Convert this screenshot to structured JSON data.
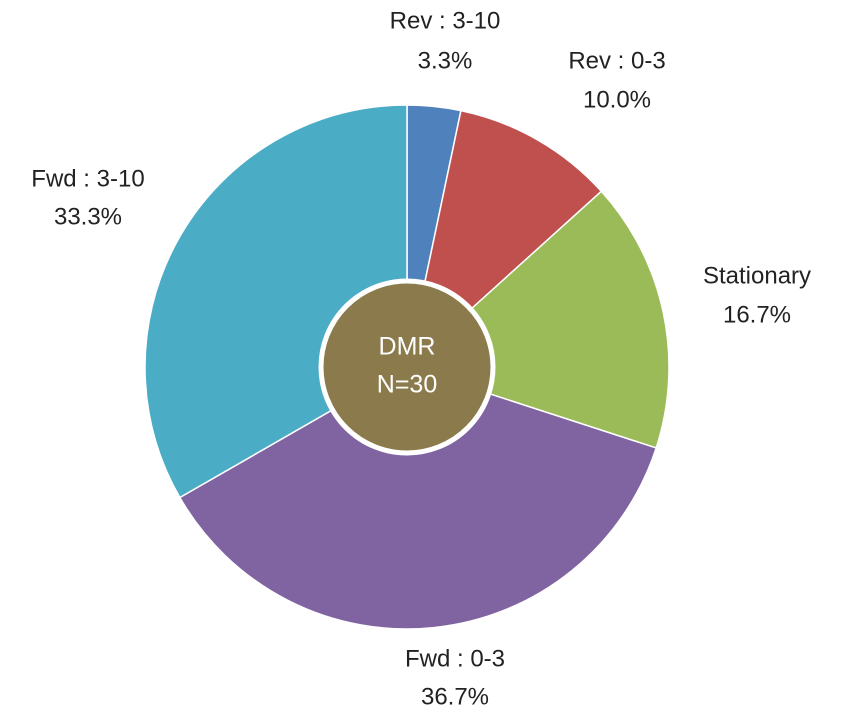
{
  "chart_data": {
    "type": "pie",
    "categories": [
      "Rev : 3-10",
      "Rev : 0-3",
      "Stationary",
      "Fwd : 0-3",
      "Fwd : 3-10"
    ],
    "values": [
      3.3,
      10.0,
      16.7,
      36.7,
      33.3
    ],
    "value_labels": [
      "3.3%",
      "10.0%",
      "16.7%",
      "36.7%",
      "33.3%"
    ],
    "colors": [
      "#4f81bd",
      "#c0504d",
      "#9bbb59",
      "#8064a2",
      "#4bacc6"
    ],
    "center_label": [
      "DMR",
      "N=30"
    ],
    "center_color": "#8b7b4c"
  }
}
